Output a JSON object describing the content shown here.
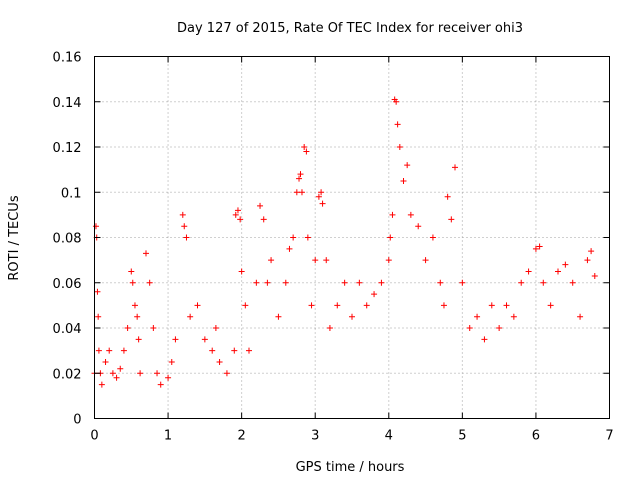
{
  "chart_data": {
    "type": "scatter",
    "title": "Day 127 of 2015, Rate Of TEC Index for receiver ohi3",
    "xlabel": "GPS time / hours",
    "ylabel": "ROTI / TECUs",
    "xlim": [
      0,
      7
    ],
    "ylim": [
      0,
      0.16
    ],
    "xticks": [
      "0",
      "1",
      "2",
      "3",
      "4",
      "5",
      "6",
      "7"
    ],
    "yticks": [
      "0",
      "0.02",
      "0.04",
      "0.06",
      "0.08",
      "0.1",
      "0.12",
      "0.14",
      "0.16"
    ],
    "grid": true,
    "marker": "+",
    "color": "#ff0000",
    "series": [
      {
        "name": "ROTI",
        "x": [
          0.0,
          0.02,
          0.03,
          0.04,
          0.05,
          0.06,
          0.08,
          0.1,
          0.15,
          0.2,
          0.25,
          0.3,
          0.35,
          0.4,
          0.45,
          0.5,
          0.52,
          0.55,
          0.58,
          0.6,
          0.62,
          0.7,
          0.75,
          0.8,
          0.85,
          0.9,
          1.0,
          1.05,
          1.1,
          1.2,
          1.22,
          1.25,
          1.3,
          1.4,
          1.5,
          1.6,
          1.65,
          1.7,
          1.8,
          1.9,
          1.92,
          1.95,
          1.98,
          2.0,
          2.05,
          2.1,
          2.2,
          2.25,
          2.3,
          2.35,
          2.4,
          2.5,
          2.6,
          2.65,
          2.7,
          2.75,
          2.78,
          2.8,
          2.82,
          2.85,
          2.88,
          2.9,
          2.95,
          3.0,
          3.05,
          3.08,
          3.1,
          3.15,
          3.2,
          3.3,
          3.4,
          3.5,
          3.6,
          3.7,
          3.8,
          3.9,
          4.0,
          4.02,
          4.05,
          4.08,
          4.1,
          4.12,
          4.15,
          4.2,
          4.25,
          4.3,
          4.4,
          4.5,
          4.6,
          4.7,
          4.75,
          4.8,
          4.85,
          4.9,
          5.0,
          5.1,
          5.2,
          5.3,
          5.4,
          5.5,
          5.6,
          5.7,
          5.8,
          5.9,
          6.0,
          6.05,
          6.1,
          6.2,
          6.3,
          6.4,
          6.5,
          6.6,
          6.7,
          6.75,
          6.8
        ],
        "y": [
          0.02,
          0.085,
          0.08,
          0.056,
          0.045,
          0.03,
          0.02,
          0.015,
          0.025,
          0.03,
          0.02,
          0.018,
          0.022,
          0.03,
          0.04,
          0.065,
          0.06,
          0.05,
          0.045,
          0.035,
          0.02,
          0.073,
          0.06,
          0.04,
          0.02,
          0.015,
          0.018,
          0.025,
          0.035,
          0.09,
          0.085,
          0.08,
          0.045,
          0.05,
          0.035,
          0.03,
          0.04,
          0.025,
          0.02,
          0.03,
          0.09,
          0.092,
          0.088,
          0.065,
          0.05,
          0.03,
          0.06,
          0.094,
          0.088,
          0.06,
          0.07,
          0.045,
          0.06,
          0.075,
          0.08,
          0.1,
          0.106,
          0.108,
          0.1,
          0.12,
          0.118,
          0.08,
          0.05,
          0.07,
          0.098,
          0.1,
          0.095,
          0.07,
          0.04,
          0.05,
          0.06,
          0.045,
          0.06,
          0.05,
          0.055,
          0.06,
          0.07,
          0.08,
          0.09,
          0.141,
          0.14,
          0.13,
          0.12,
          0.105,
          0.112,
          0.09,
          0.085,
          0.07,
          0.08,
          0.06,
          0.05,
          0.098,
          0.088,
          0.111,
          0.06,
          0.04,
          0.045,
          0.035,
          0.05,
          0.04,
          0.05,
          0.045,
          0.06,
          0.065,
          0.075,
          0.076,
          0.06,
          0.05,
          0.065,
          0.068,
          0.06,
          0.045,
          0.07,
          0.074,
          0.063
        ]
      }
    ]
  }
}
